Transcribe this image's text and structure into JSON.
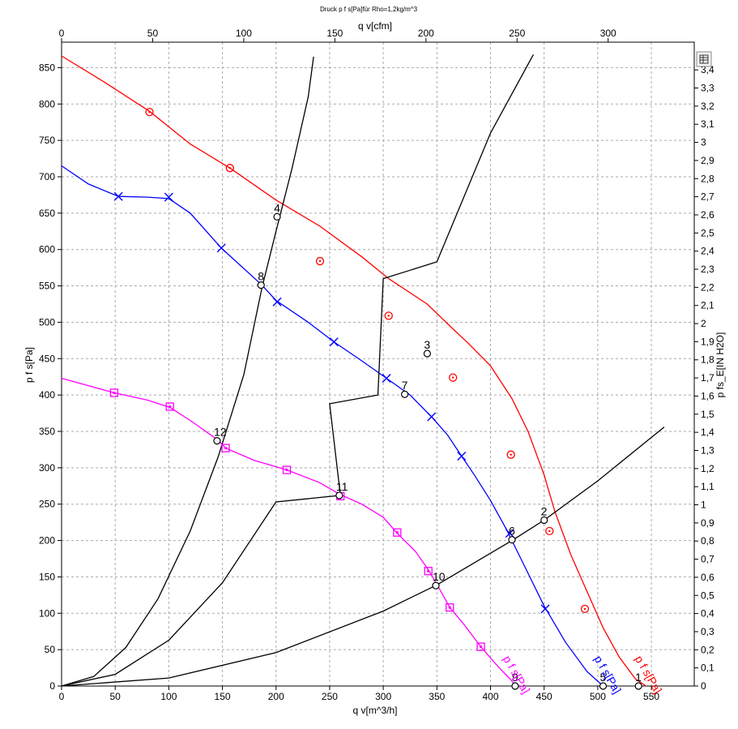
{
  "title": "Druck p f s[Pa]für Rho=1,2kg/m^3",
  "chart_data": {
    "type": "line",
    "title": "Druck p f s[Pa]für Rho=1,2kg/m^3",
    "xlabel": "q v[m^3/h]",
    "x2label": "q v[cfm]",
    "ylabel": "p f s[Pa]",
    "y2label": "p fs_E[IN H2O]",
    "xlim": [
      0,
      590
    ],
    "ylim": [
      0,
      885
    ],
    "grid": true,
    "xticks": [
      "0",
      "50",
      "100",
      "150",
      "200",
      "250",
      "300",
      "350",
      "400",
      "450",
      "500",
      "550"
    ],
    "x2ticks": [
      "0",
      "50",
      "100",
      "150",
      "200",
      "250",
      "300"
    ],
    "yticks": [
      "0",
      "50",
      "100",
      "150",
      "200",
      "250",
      "300",
      "350",
      "400",
      "450",
      "500",
      "550",
      "600",
      "650",
      "700",
      "750",
      "800",
      "850"
    ],
    "y2ticks": [
      "0",
      "0,1",
      "0,2",
      "0,3",
      "0,4",
      "0,5",
      "0,6",
      "0,7",
      "0,8",
      "0,9",
      "1",
      "1,1",
      "1,2",
      "1,3",
      "1,4",
      "1,5",
      "1,6",
      "1,7",
      "1,8",
      "1,9",
      "2",
      "2,1",
      "2,2",
      "2,3",
      "2,4",
      "2,5",
      "2,6",
      "2,7",
      "2,8",
      "2,9",
      "3",
      "3,1",
      "3,2",
      "3,3",
      "3,4"
    ],
    "series": [
      {
        "name": "p f s[Pa]",
        "color": "#ff0000",
        "marker": "circle",
        "curve": [
          [
            0,
            866
          ],
          [
            40,
            830
          ],
          [
            82,
            790
          ],
          [
            120,
            745
          ],
          [
            157,
            712
          ],
          [
            200,
            668
          ],
          [
            241,
            632
          ],
          [
            280,
            590
          ],
          [
            305,
            560
          ],
          [
            341,
            525
          ],
          [
            362,
            495
          ],
          [
            380,
            470
          ],
          [
            400,
            440
          ],
          [
            420,
            395
          ],
          [
            435,
            350
          ],
          [
            450,
            290
          ],
          [
            460,
            240
          ],
          [
            475,
            180
          ],
          [
            490,
            130
          ],
          [
            505,
            80
          ],
          [
            520,
            40
          ],
          [
            535,
            10
          ],
          [
            545,
            0
          ]
        ],
        "markers": [
          [
            82,
            789
          ],
          [
            157,
            712
          ],
          [
            241,
            584
          ],
          [
            305,
            509
          ],
          [
            365,
            424
          ],
          [
            419,
            318
          ],
          [
            455,
            213
          ],
          [
            488,
            106
          ]
        ]
      },
      {
        "name": "p f s[Pa]",
        "color": "#0000ff",
        "marker": "x",
        "curve": [
          [
            0,
            715
          ],
          [
            25,
            690
          ],
          [
            53,
            673
          ],
          [
            80,
            672
          ],
          [
            100,
            670
          ],
          [
            120,
            650
          ],
          [
            149,
            602
          ],
          [
            187,
            551
          ],
          [
            200,
            530
          ],
          [
            230,
            500
          ],
          [
            254,
            473
          ],
          [
            280,
            447
          ],
          [
            303,
            423
          ],
          [
            325,
            400
          ],
          [
            345,
            370
          ],
          [
            360,
            345
          ],
          [
            373,
            316
          ],
          [
            385,
            290
          ],
          [
            400,
            255
          ],
          [
            415,
            215
          ],
          [
            430,
            170
          ],
          [
            450,
            110
          ],
          [
            470,
            60
          ],
          [
            490,
            20
          ],
          [
            505,
            0
          ]
        ],
        "markers": [
          [
            53,
            673
          ],
          [
            100,
            672
          ],
          [
            149,
            602
          ],
          [
            201,
            528
          ],
          [
            254,
            473
          ],
          [
            303,
            423
          ],
          [
            345,
            370
          ],
          [
            373,
            316
          ],
          [
            418,
            210
          ],
          [
            451,
            106
          ]
        ]
      },
      {
        "name": "p f s[Pa]",
        "color": "#ff00ff",
        "marker": "square",
        "curve": [
          [
            0,
            423
          ],
          [
            49,
            403
          ],
          [
            80,
            393
          ],
          [
            101,
            383
          ],
          [
            120,
            365
          ],
          [
            146,
            338
          ],
          [
            153,
            327
          ],
          [
            180,
            310
          ],
          [
            210,
            297
          ],
          [
            240,
            280
          ],
          [
            260,
            263
          ],
          [
            280,
            250
          ],
          [
            300,
            232
          ],
          [
            313,
            210
          ],
          [
            330,
            185
          ],
          [
            342,
            160
          ],
          [
            350,
            140
          ],
          [
            362,
            108
          ],
          [
            375,
            85
          ],
          [
            391,
            54
          ],
          [
            405,
            30
          ],
          [
            418,
            10
          ],
          [
            424,
            0
          ]
        ],
        "markers": [
          [
            49,
            403
          ],
          [
            101,
            384
          ],
          [
            153,
            327
          ],
          [
            210,
            297
          ],
          [
            260,
            261
          ],
          [
            313,
            211
          ],
          [
            342,
            158
          ],
          [
            362,
            108
          ],
          [
            391,
            54
          ]
        ]
      },
      {
        "name": "",
        "color": "#000000",
        "marker": "",
        "curve": [
          [
            0,
            0
          ],
          [
            30,
            13
          ],
          [
            60,
            53
          ],
          [
            90,
            120
          ],
          [
            120,
            213
          ],
          [
            146,
            315
          ],
          [
            170,
            428
          ],
          [
            187,
            548
          ],
          [
            200,
            625
          ],
          [
            215,
            712
          ],
          [
            230,
            810
          ],
          [
            235,
            865
          ]
        ],
        "markers": []
      },
      {
        "name": "",
        "color": "#000000",
        "marker": "",
        "curve": [
          [
            0,
            0
          ],
          [
            50,
            16
          ],
          [
            100,
            63
          ],
          [
            150,
            142
          ],
          [
            200,
            253
          ],
          [
            260,
            262
          ],
          [
            250,
            388
          ],
          [
            295,
            400
          ],
          [
            300,
            560
          ],
          [
            350,
            583
          ],
          [
            400,
            760
          ],
          [
            440,
            868
          ]
        ],
        "markers": []
      },
      {
        "name": "",
        "color": "#000000",
        "marker": "",
        "curve": [
          [
            0,
            0
          ],
          [
            100,
            11
          ],
          [
            200,
            46
          ],
          [
            300,
            103
          ],
          [
            350,
            139
          ],
          [
            420,
            200
          ],
          [
            450,
            228
          ],
          [
            500,
            282
          ],
          [
            562,
            356
          ]
        ],
        "markers": []
      }
    ],
    "points": [
      {
        "label": "1",
        "x": 538,
        "y": 0
      },
      {
        "label": "2",
        "x": 450,
        "y": 228
      },
      {
        "label": "3",
        "x": 341,
        "y": 457
      },
      {
        "label": "4",
        "x": 201,
        "y": 645
      },
      {
        "label": "5",
        "x": 505,
        "y": 0
      },
      {
        "label": "6",
        "x": 420,
        "y": 201
      },
      {
        "label": "7",
        "x": 320,
        "y": 401
      },
      {
        "label": "8",
        "x": 186,
        "y": 551
      },
      {
        "label": "9",
        "x": 423,
        "y": 0
      },
      {
        "label": "10",
        "x": 349,
        "y": 138
      },
      {
        "label": "11",
        "x": 259,
        "y": 262
      },
      {
        "label": "12",
        "x": 145,
        "y": 337
      }
    ]
  },
  "toolbar": {
    "chart_icon": "chart-options-icon"
  }
}
